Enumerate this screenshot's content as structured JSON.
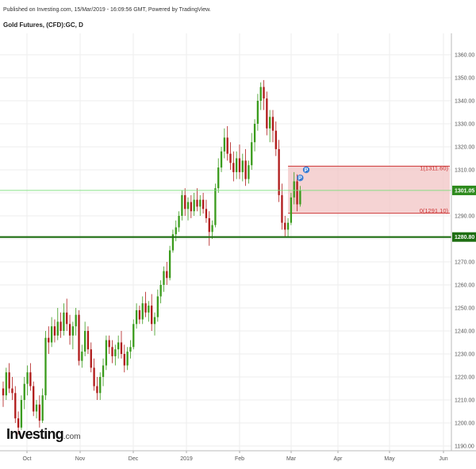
{
  "header": {
    "published": "Published on Investing.com, 15/Mar/2019 - 16:09:56 GMT, Powered by TradingView.",
    "symbol": "Gold Futures, (CFD):GC, D"
  },
  "logo": {
    "name": "Investing",
    "suffix": ".com"
  },
  "colors": {
    "up": "#3a9b1c",
    "down": "#b01a1a",
    "support": "#1e6e12",
    "current_line": "#77dd77",
    "zone_fill": "#f2c4c4",
    "zone_line": "#cc3333",
    "marker": "#3d7fd4"
  },
  "chart_data": {
    "type": "candlestick",
    "title": "",
    "y_axis": {
      "min": 1185,
      "max": 1370,
      "ticks": [
        1190,
        1200,
        1210,
        1220,
        1230,
        1240,
        1250,
        1260,
        1270,
        1280,
        1290,
        1300,
        1310,
        1320,
        1330,
        1340,
        1350,
        1360
      ],
      "position": "right"
    },
    "x_axis": {
      "ticks": [
        "Oct",
        "Nov",
        "Dec",
        "2019",
        "Feb",
        "Mar",
        "Apr",
        "May",
        "Jun"
      ]
    },
    "grid": true,
    "candles": [
      {
        "o": 1215,
        "h": 1218,
        "l": 1207,
        "c": 1212
      },
      {
        "o": 1212,
        "h": 1224,
        "l": 1210,
        "c": 1222
      },
      {
        "o": 1222,
        "h": 1226,
        "l": 1213,
        "c": 1215
      },
      {
        "o": 1215,
        "h": 1220,
        "l": 1210,
        "c": 1213
      },
      {
        "o": 1213,
        "h": 1216,
        "l": 1200,
        "c": 1202
      },
      {
        "o": 1202,
        "h": 1205,
        "l": 1195,
        "c": 1198
      },
      {
        "o": 1198,
        "h": 1212,
        "l": 1197,
        "c": 1210
      },
      {
        "o": 1210,
        "h": 1220,
        "l": 1206,
        "c": 1217
      },
      {
        "o": 1217,
        "h": 1225,
        "l": 1212,
        "c": 1222
      },
      {
        "o": 1222,
        "h": 1226,
        "l": 1214,
        "c": 1216
      },
      {
        "o": 1216,
        "h": 1218,
        "l": 1203,
        "c": 1205
      },
      {
        "o": 1205,
        "h": 1210,
        "l": 1202,
        "c": 1208
      },
      {
        "o": 1208,
        "h": 1212,
        "l": 1198,
        "c": 1201
      },
      {
        "o": 1201,
        "h": 1215,
        "l": 1200,
        "c": 1212
      },
      {
        "o": 1212,
        "h": 1240,
        "l": 1210,
        "c": 1237
      },
      {
        "o": 1237,
        "h": 1242,
        "l": 1230,
        "c": 1235
      },
      {
        "o": 1235,
        "h": 1246,
        "l": 1233,
        "c": 1242
      },
      {
        "o": 1242,
        "h": 1245,
        "l": 1235,
        "c": 1238
      },
      {
        "o": 1238,
        "h": 1250,
        "l": 1236,
        "c": 1244
      },
      {
        "o": 1244,
        "h": 1248,
        "l": 1237,
        "c": 1240
      },
      {
        "o": 1240,
        "h": 1252,
        "l": 1238,
        "c": 1248
      },
      {
        "o": 1248,
        "h": 1254,
        "l": 1240,
        "c": 1243
      },
      {
        "o": 1243,
        "h": 1247,
        "l": 1234,
        "c": 1238
      },
      {
        "o": 1238,
        "h": 1244,
        "l": 1232,
        "c": 1242
      },
      {
        "o": 1242,
        "h": 1250,
        "l": 1238,
        "c": 1247
      },
      {
        "o": 1247,
        "h": 1249,
        "l": 1225,
        "c": 1227
      },
      {
        "o": 1227,
        "h": 1234,
        "l": 1224,
        "c": 1231
      },
      {
        "o": 1231,
        "h": 1244,
        "l": 1229,
        "c": 1240
      },
      {
        "o": 1240,
        "h": 1242,
        "l": 1230,
        "c": 1232
      },
      {
        "o": 1232,
        "h": 1235,
        "l": 1222,
        "c": 1224
      },
      {
        "o": 1224,
        "h": 1228,
        "l": 1214,
        "c": 1216
      },
      {
        "o": 1216,
        "h": 1220,
        "l": 1210,
        "c": 1213
      },
      {
        "o": 1213,
        "h": 1222,
        "l": 1210,
        "c": 1220
      },
      {
        "o": 1220,
        "h": 1228,
        "l": 1216,
        "c": 1225
      },
      {
        "o": 1225,
        "h": 1238,
        "l": 1223,
        "c": 1236
      },
      {
        "o": 1236,
        "h": 1238,
        "l": 1230,
        "c": 1233
      },
      {
        "o": 1233,
        "h": 1236,
        "l": 1226,
        "c": 1229
      },
      {
        "o": 1229,
        "h": 1234,
        "l": 1225,
        "c": 1232
      },
      {
        "o": 1232,
        "h": 1238,
        "l": 1228,
        "c": 1235
      },
      {
        "o": 1235,
        "h": 1240,
        "l": 1228,
        "c": 1230
      },
      {
        "o": 1230,
        "h": 1234,
        "l": 1222,
        "c": 1225
      },
      {
        "o": 1225,
        "h": 1233,
        "l": 1223,
        "c": 1231
      },
      {
        "o": 1231,
        "h": 1236,
        "l": 1228,
        "c": 1233
      },
      {
        "o": 1233,
        "h": 1245,
        "l": 1232,
        "c": 1243
      },
      {
        "o": 1243,
        "h": 1252,
        "l": 1241,
        "c": 1249
      },
      {
        "o": 1249,
        "h": 1251,
        "l": 1243,
        "c": 1245
      },
      {
        "o": 1245,
        "h": 1255,
        "l": 1243,
        "c": 1252
      },
      {
        "o": 1252,
        "h": 1257,
        "l": 1246,
        "c": 1248
      },
      {
        "o": 1248,
        "h": 1253,
        "l": 1244,
        "c": 1251
      },
      {
        "o": 1251,
        "h": 1256,
        "l": 1240,
        "c": 1243
      },
      {
        "o": 1243,
        "h": 1248,
        "l": 1238,
        "c": 1246
      },
      {
        "o": 1246,
        "h": 1258,
        "l": 1244,
        "c": 1255
      },
      {
        "o": 1255,
        "h": 1262,
        "l": 1252,
        "c": 1260
      },
      {
        "o": 1260,
        "h": 1268,
        "l": 1257,
        "c": 1266
      },
      {
        "o": 1266,
        "h": 1270,
        "l": 1260,
        "c": 1263
      },
      {
        "o": 1263,
        "h": 1277,
        "l": 1262,
        "c": 1275
      },
      {
        "o": 1275,
        "h": 1284,
        "l": 1274,
        "c": 1282
      },
      {
        "o": 1282,
        "h": 1288,
        "l": 1279,
        "c": 1285
      },
      {
        "o": 1285,
        "h": 1292,
        "l": 1283,
        "c": 1290
      },
      {
        "o": 1290,
        "h": 1301,
        "l": 1288,
        "c": 1299
      },
      {
        "o": 1299,
        "h": 1302,
        "l": 1290,
        "c": 1293
      },
      {
        "o": 1293,
        "h": 1298,
        "l": 1288,
        "c": 1296
      },
      {
        "o": 1296,
        "h": 1299,
        "l": 1289,
        "c": 1292
      },
      {
        "o": 1292,
        "h": 1300,
        "l": 1290,
        "c": 1297
      },
      {
        "o": 1297,
        "h": 1302,
        "l": 1292,
        "c": 1294
      },
      {
        "o": 1294,
        "h": 1299,
        "l": 1290,
        "c": 1297
      },
      {
        "o": 1297,
        "h": 1300,
        "l": 1291,
        "c": 1293
      },
      {
        "o": 1293,
        "h": 1297,
        "l": 1287,
        "c": 1289
      },
      {
        "o": 1289,
        "h": 1292,
        "l": 1277,
        "c": 1283
      },
      {
        "o": 1283,
        "h": 1288,
        "l": 1280,
        "c": 1286
      },
      {
        "o": 1286,
        "h": 1304,
        "l": 1285,
        "c": 1302
      },
      {
        "o": 1302,
        "h": 1315,
        "l": 1300,
        "c": 1311
      },
      {
        "o": 1311,
        "h": 1320,
        "l": 1309,
        "c": 1318
      },
      {
        "o": 1318,
        "h": 1328,
        "l": 1315,
        "c": 1324
      },
      {
        "o": 1324,
        "h": 1329,
        "l": 1314,
        "c": 1317
      },
      {
        "o": 1317,
        "h": 1322,
        "l": 1310,
        "c": 1313
      },
      {
        "o": 1313,
        "h": 1318,
        "l": 1305,
        "c": 1309
      },
      {
        "o": 1309,
        "h": 1318,
        "l": 1306,
        "c": 1315
      },
      {
        "o": 1315,
        "h": 1321,
        "l": 1306,
        "c": 1309
      },
      {
        "o": 1309,
        "h": 1317,
        "l": 1305,
        "c": 1314
      },
      {
        "o": 1314,
        "h": 1319,
        "l": 1303,
        "c": 1306
      },
      {
        "o": 1306,
        "h": 1314,
        "l": 1304,
        "c": 1312
      },
      {
        "o": 1312,
        "h": 1326,
        "l": 1310,
        "c": 1322
      },
      {
        "o": 1322,
        "h": 1332,
        "l": 1318,
        "c": 1330
      },
      {
        "o": 1330,
        "h": 1343,
        "l": 1327,
        "c": 1340
      },
      {
        "o": 1340,
        "h": 1348,
        "l": 1336,
        "c": 1346
      },
      {
        "o": 1346,
        "h": 1349,
        "l": 1336,
        "c": 1341
      },
      {
        "o": 1341,
        "h": 1344,
        "l": 1325,
        "c": 1328
      },
      {
        "o": 1328,
        "h": 1336,
        "l": 1322,
        "c": 1333
      },
      {
        "o": 1333,
        "h": 1336,
        "l": 1322,
        "c": 1327
      },
      {
        "o": 1327,
        "h": 1331,
        "l": 1316,
        "c": 1319
      },
      {
        "o": 1319,
        "h": 1323,
        "l": 1296,
        "c": 1299
      },
      {
        "o": 1299,
        "h": 1304,
        "l": 1284,
        "c": 1287
      },
      {
        "o": 1287,
        "h": 1290,
        "l": 1281,
        "c": 1284
      },
      {
        "o": 1284,
        "h": 1289,
        "l": 1281,
        "c": 1287
      },
      {
        "o": 1287,
        "h": 1300,
        "l": 1286,
        "c": 1298
      },
      {
        "o": 1298,
        "h": 1309,
        "l": 1295,
        "c": 1305
      },
      {
        "o": 1305,
        "h": 1308,
        "l": 1292,
        "c": 1295
      },
      {
        "o": 1295,
        "h": 1303,
        "l": 1294,
        "c": 1301
      }
    ],
    "last_price": 1301.05,
    "last_price_label": "1301.05",
    "support": 1280.8,
    "support_label": "1280.80",
    "fib_zone": {
      "top": 1311.6,
      "bottom": 1291.1,
      "top_label": "1(1311.60)",
      "bottom_label": "0(1291.10)"
    },
    "markers": [
      "P",
      "P"
    ]
  }
}
